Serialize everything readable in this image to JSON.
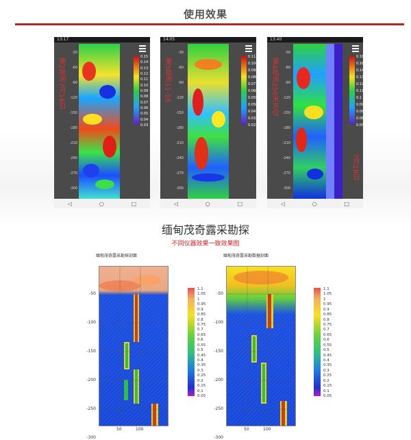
{
  "header": {
    "title": "使用效果"
  },
  "phones": [
    {
      "status": "13:17",
      "label": "第2批测7月16日",
      "y_ticks": [
        "-30",
        "-60",
        "-90",
        "-120",
        "-150",
        "-180",
        "-210",
        "-240",
        "-270",
        "-300"
      ],
      "colorbar": [
        "0.15",
        "0.14",
        "0.13",
        "0.12",
        "0.11",
        "0.10",
        "0.09",
        "0.08",
        "0.07",
        "0.06",
        "0.05",
        "0.04",
        "0.03"
      ],
      "nav": [
        "◁",
        "○",
        "□"
      ]
    },
    {
      "status": "14:05",
      "label": "第3批测11-18",
      "y_ticks": [
        "-30",
        "-60",
        "-90",
        "-120",
        "-150",
        "-180",
        "-210",
        "-240",
        "-270",
        "-300"
      ],
      "colorbar": [
        "0.113",
        "0.104",
        "0.095",
        "0.086",
        "0.077",
        "0.068",
        "0.059",
        "0.050",
        "0.041",
        "0.032",
        "0.023"
      ],
      "nav": [
        "◁",
        "○",
        "□"
      ]
    },
    {
      "status": "13:40",
      "label": "第4批测250米方位",
      "label2": "7月18日",
      "y_ticks": [
        "-30",
        "-60",
        "-90",
        "-120",
        "-150",
        "-180",
        "-210",
        "-240",
        "-270",
        "-300"
      ],
      "colorbar": [
        "0.18",
        "0.16",
        "0.14",
        "0.13",
        "0.12",
        "0.11",
        "0.1",
        "0.09",
        "0.08",
        "0.06",
        "0.05"
      ],
      "nav": [
        "◁",
        "○",
        "□"
      ]
    }
  ],
  "section": {
    "subtitle": "缅甸茂奇露采勘探",
    "note": "不同仪器效果一致效果图"
  },
  "charts": [
    {
      "title": "缅甸茂奇露采勘探剖面",
      "y_ticks": [
        "-50",
        "-100",
        "-150",
        "-200",
        "-250",
        "-300"
      ],
      "x_ticks": [
        "50",
        "100"
      ],
      "colorbar": [
        "1.1",
        "1.05",
        "1",
        "0.95",
        "0.9",
        "0.85",
        "0.8",
        "0.75",
        "0.7",
        "0.65",
        "0.6",
        "0.55",
        "0.5",
        "0.45",
        "0.4",
        "0.35",
        "0.3",
        "0.25",
        "0.2",
        "0.15",
        "0.1",
        "0.05"
      ]
    },
    {
      "title": "缅甸茂奇露采勘数据剖面",
      "y_ticks": [
        "-50",
        "-100",
        "-150",
        "-200",
        "-250",
        "-300"
      ],
      "x_ticks": [
        "50",
        "100"
      ],
      "colorbar": [
        "1.1",
        "1.05",
        "1",
        "0.95",
        "0.9",
        "0.85",
        "0.8",
        "0.75",
        "0.7",
        "0.65",
        "0.6",
        "0.55",
        "0.5",
        "0.45",
        "0.4",
        "0.35",
        "0.3",
        "0.25",
        "0.2",
        "0.15",
        "0.1",
        "0.05"
      ]
    }
  ],
  "colors": {
    "accent": "#b2262a",
    "note": "#e02020"
  }
}
